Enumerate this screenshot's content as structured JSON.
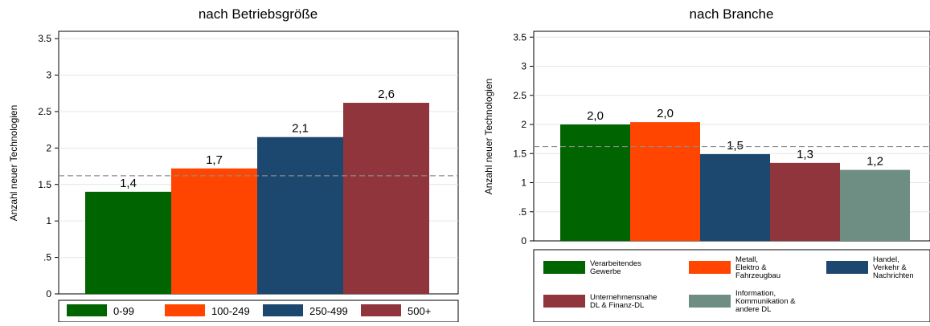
{
  "colors": {
    "green": "#006400",
    "orange": "#ff4500",
    "navy": "#1c476f",
    "maroon": "#90353b",
    "grey_green": "#6e8e84",
    "reference_line": "#8c8c8c"
  },
  "chart_data": [
    {
      "type": "bar",
      "title": "nach Betriebsgröße",
      "ylabel": "Anzahl neuer Technologien",
      "xlabel": "",
      "ylim": [
        0,
        3.6
      ],
      "yticks": [
        0,
        0.5,
        1,
        1.5,
        2,
        2.5,
        3,
        3.5
      ],
      "ytick_labels": [
        "0",
        ".5",
        "1",
        "1.5",
        "2",
        "2.5",
        "3",
        "3.5"
      ],
      "reference_line": 1.62,
      "grid": true,
      "legend_position": "bottom",
      "bars": [
        {
          "name": "0-99",
          "value": 1.4,
          "label": "1,4",
          "color": "#006400"
        },
        {
          "name": "100-249",
          "value": 1.72,
          "label": "1,7",
          "color": "#ff4500"
        },
        {
          "name": "250-499",
          "value": 2.15,
          "label": "2,1",
          "color": "#1c476f"
        },
        {
          "name": "500+",
          "value": 2.62,
          "label": "2,6",
          "color": "#90353b"
        }
      ]
    },
    {
      "type": "bar",
      "title": "nach Branche",
      "ylabel": "Anzahl neuer Technologien",
      "xlabel": "",
      "ylim": [
        0,
        3.6
      ],
      "yticks": [
        0,
        0.5,
        1,
        1.5,
        2,
        2.5,
        3,
        3.5
      ],
      "ytick_labels": [
        "0",
        ".5",
        "1",
        "1.5",
        "2",
        "2.5",
        "3",
        "3.5"
      ],
      "reference_line": 1.62,
      "grid": true,
      "legend_position": "bottom",
      "bars": [
        {
          "name": [
            "Verarbeitendes",
            "Gewerbe"
          ],
          "value": 2.0,
          "label": "2,0",
          "color": "#006400"
        },
        {
          "name": [
            "Metall,",
            "Elektro &",
            "Fahrzeugbau"
          ],
          "value": 2.04,
          "label": "2,0",
          "color": "#ff4500"
        },
        {
          "name": [
            "Handel,",
            "Verkehr &",
            "Nachrichten"
          ],
          "value": 1.49,
          "label": "1,5",
          "color": "#1c476f"
        },
        {
          "name": [
            "Unternehmensnahe",
            "DL & Finanz-DL"
          ],
          "value": 1.34,
          "label": "1,3",
          "color": "#90353b"
        },
        {
          "name": [
            "Information,",
            "Kommunikation &",
            "andere DL"
          ],
          "value": 1.22,
          "label": "1,2",
          "color": "#6e8e84"
        }
      ]
    }
  ]
}
